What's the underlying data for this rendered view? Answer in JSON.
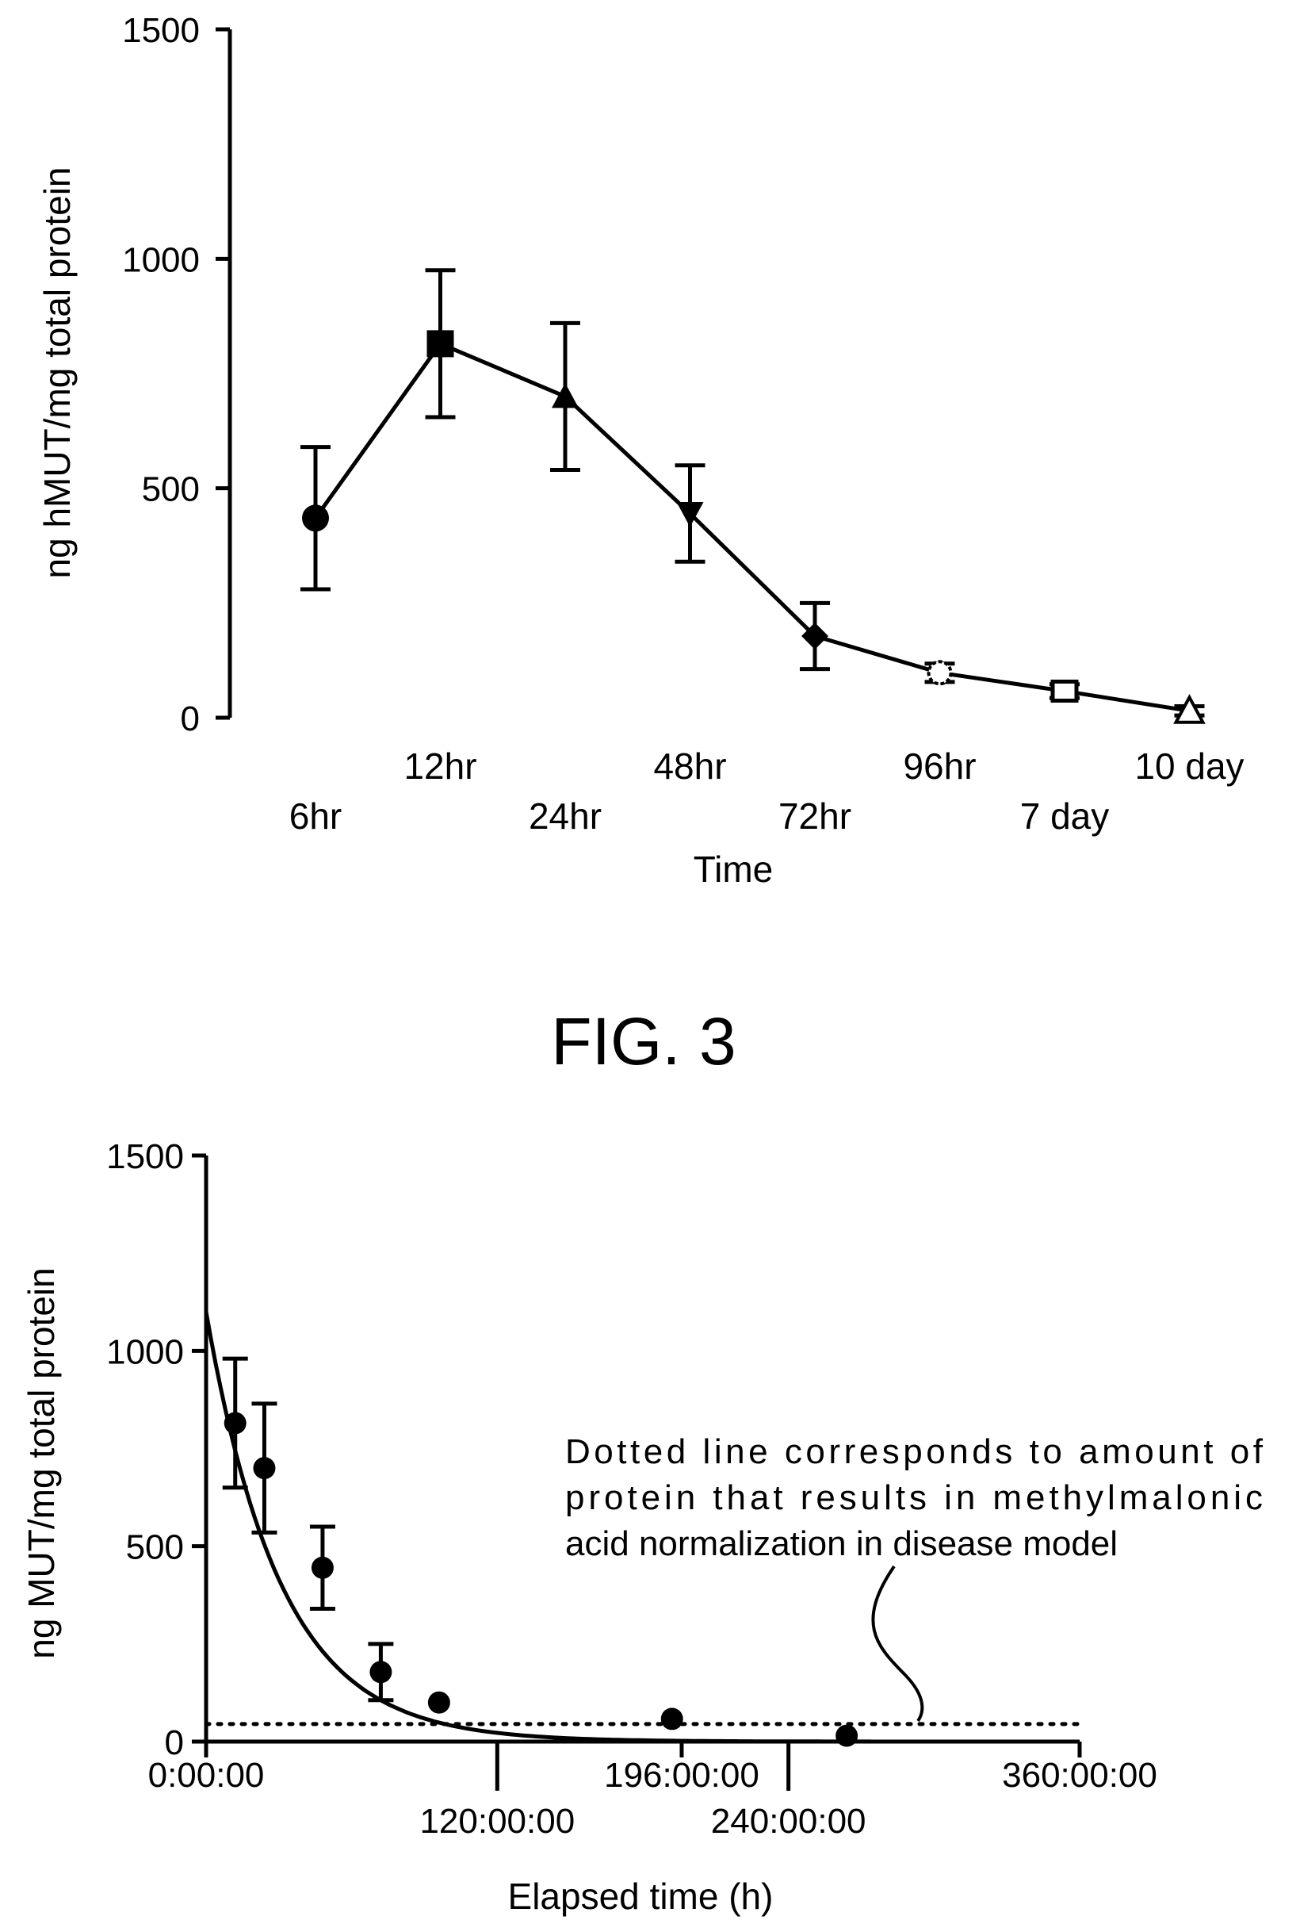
{
  "figure_caption": "FIG. 3",
  "chart_data": [
    {
      "type": "line",
      "xlabel": "Time",
      "ylabel": "ng hMUT/mg total protein",
      "ylim": [
        0,
        1500
      ],
      "yticks": [
        "0",
        "500",
        "1000",
        "1500"
      ],
      "grid": false,
      "categories": [
        "6hr",
        "12hr",
        "24hr",
        "48hr",
        "72hr",
        "96hr",
        "7 day",
        "10 day"
      ],
      "markers": [
        "circle",
        "square",
        "triangle-up",
        "triangle-down",
        "diamond",
        "open-circle",
        "open-square",
        "open-triangle"
      ],
      "values": [
        435,
        815,
        700,
        445,
        178,
        98,
        58,
        15
      ],
      "errors": [
        155,
        160,
        160,
        105,
        72,
        20,
        15,
        10
      ]
    },
    {
      "type": "scatter",
      "xlabel": "Elapsed time (h)",
      "ylabel": "ng MUT/mg total protein",
      "ylim": [
        0,
        1500
      ],
      "xlim": [
        0,
        360
      ],
      "yticks": [
        "0",
        "500",
        "1000",
        "1500"
      ],
      "xticks": [
        {
          "value": 0,
          "label": "0:00:00"
        },
        {
          "value": 120,
          "label": "120:00:00"
        },
        {
          "value": 196,
          "label": "196:00:00"
        },
        {
          "value": 240,
          "label": "240:00:00"
        },
        {
          "value": 360,
          "label": "360:00:00"
        }
      ],
      "grid": false,
      "points": [
        {
          "x": 12,
          "y": 815,
          "err": 165
        },
        {
          "x": 24,
          "y": 700,
          "err": 165
        },
        {
          "x": 48,
          "y": 445,
          "err": 105
        },
        {
          "x": 72,
          "y": 178,
          "err": 72
        },
        {
          "x": 96,
          "y": 100,
          "err": 0
        },
        {
          "x": 192,
          "y": 58,
          "err": 0
        },
        {
          "x": 264,
          "y": 15,
          "err": 0
        }
      ],
      "fit": {
        "model": "exponential decay",
        "y0": 1100,
        "rate_per_hour": 0.0325
      },
      "threshold": {
        "y": 45,
        "style": "dotted",
        "x_range": [
          0,
          360
        ]
      },
      "annotation": [
        "Dotted line corresponds to amount   of",
        "protein  that  results  in  methylmalonic",
        "acid normalization in disease model"
      ]
    }
  ]
}
